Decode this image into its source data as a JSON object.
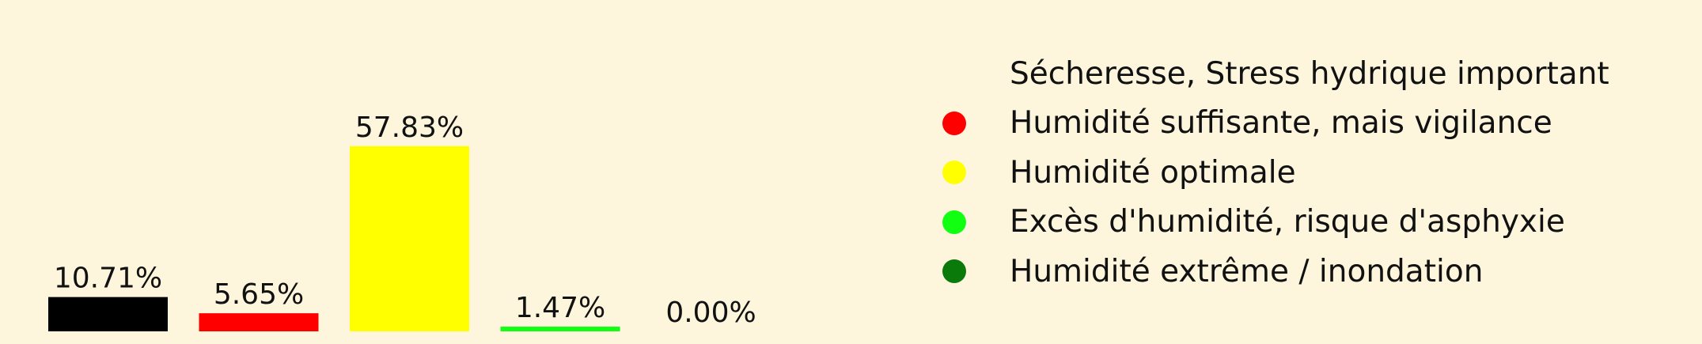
{
  "chart_data": {
    "type": "bar",
    "categories": [
      "Sécheresse, Stress hydrique important",
      "Humidité suffisante, mais vigilance",
      "Humidité optimale",
      "Excès d'humidité, risque d'asphyxie",
      "Humidité extrême / inondation"
    ],
    "values": [
      10.71,
      5.65,
      57.83,
      1.47,
      0.0
    ],
    "value_labels": [
      "10.71%",
      "5.65%",
      "57.83%",
      "1.47%",
      "0.00%"
    ],
    "colors": [
      "#000000",
      "#ff0000",
      "#ffff00",
      "#11ff11",
      "#0a7a0a"
    ],
    "title": "",
    "xlabel": "",
    "ylabel": "",
    "ylim": [
      0,
      100
    ],
    "grid": false,
    "legend_position": "right"
  },
  "colors": {
    "background": "#fdf6dc",
    "text": "#111111"
  }
}
